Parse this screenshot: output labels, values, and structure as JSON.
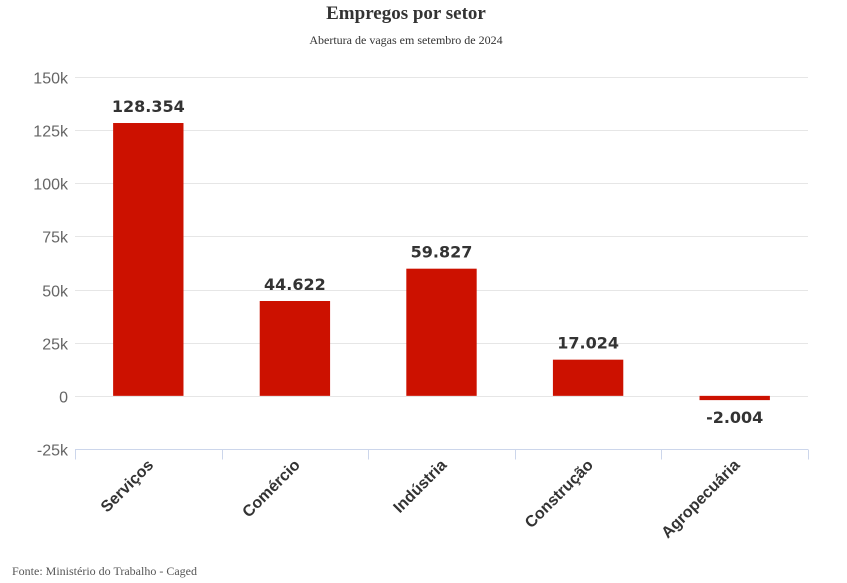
{
  "chart_data": {
    "type": "bar",
    "title": "Empregos por setor",
    "subtitle": "Abertura de vagas em setembro de 2024",
    "categories": [
      "Serviços",
      "Comércio",
      "Indústria",
      "Construção",
      "Agropecuária"
    ],
    "values": [
      128354,
      44622,
      59827,
      17024,
      -2004
    ],
    "data_labels": [
      "128.354",
      "44.622",
      "59.827",
      "17.024",
      "-2.004"
    ],
    "ylim": [
      -25000,
      150000
    ],
    "yticks": [
      -25000,
      0,
      25000,
      50000,
      75000,
      100000,
      125000,
      150000
    ],
    "ytick_labels": [
      "-25k",
      "0",
      "25k",
      "50k",
      "75k",
      "100k",
      "125k",
      "150k"
    ],
    "xlabel": "",
    "ylabel": "",
    "grid": true,
    "legend": "none",
    "bar_color": "#cc1100",
    "source": "Fonte: Ministério do Trabalho - Caged"
  }
}
